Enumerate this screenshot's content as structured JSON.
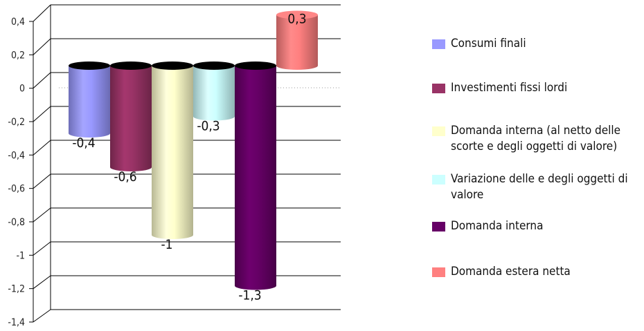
{
  "chart_data": {
    "type": "bar",
    "title": "",
    "xlabel": "",
    "ylabel": "",
    "ylim": [
      -1.4,
      0.4
    ],
    "yticks": [
      "0,4",
      "0,2",
      "0",
      "-0,2",
      "-0,4",
      "-0,6",
      "-0,8",
      "-1",
      "-1,2",
      "-1,4"
    ],
    "grid": true,
    "legend_position": "right",
    "series": [
      {
        "name": "Consumi finali",
        "value": -0.4,
        "label": "-0,4",
        "color": "#9999ff"
      },
      {
        "name": "Investimenti fissi lordi",
        "value": -0.6,
        "label": "-0,6",
        "color": "#993366"
      },
      {
        "name": "Domanda interna (al netto delle scorte e degli oggetti di valore)",
        "value": -1,
        "label": "-1",
        "color": "#ffffcc"
      },
      {
        "name": "Variazione delle e degli oggetti di valore",
        "value": -0.3,
        "label": "-0,3",
        "color": "#ccffff"
      },
      {
        "name": "Domanda interna",
        "value": -1.3,
        "label": "-1,3",
        "color": "#660066"
      },
      {
        "name": "Domanda estera netta",
        "value": 0.3,
        "label": "0,3",
        "color": "#ff8080"
      }
    ]
  }
}
